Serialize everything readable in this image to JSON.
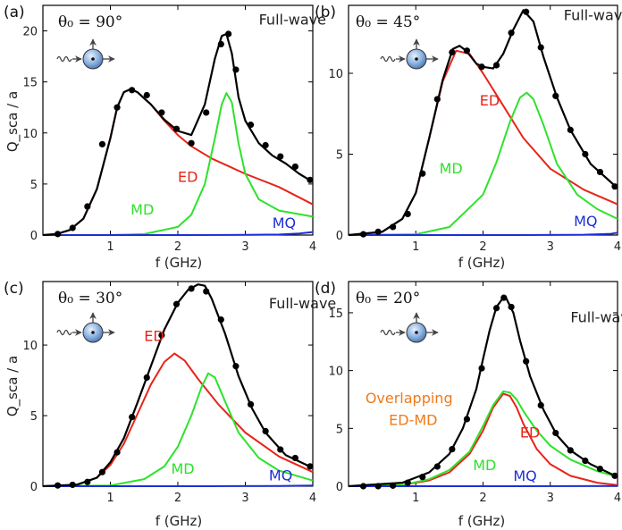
{
  "figure": {
    "y_axis_label": "Q_sca / a",
    "x_axis_label": "f (GHz)",
    "colors": {
      "ED": "#e8241a",
      "MD": "#2ee22b",
      "MQ": "#1d2fd6",
      "Full-wave": "#000000",
      "Overlap": "#f07a1a",
      "sphere": "#7fa8d8"
    }
  },
  "chart_data": [
    {
      "type": "line",
      "panel_label": "(a)",
      "theta_label": "θ₀ = 90°",
      "xlabel": "f (GHz)",
      "ylabel": "Q_sca / a",
      "xlim": [
        0,
        4
      ],
      "ylim": [
        0,
        22.5
      ],
      "xticks": [
        1,
        2,
        3,
        4
      ],
      "yticks": [
        0,
        5,
        10,
        15,
        20
      ],
      "series": [
        {
          "name": "ED",
          "x": [
            0,
            0.2,
            0.4,
            0.6,
            0.8,
            1.0,
            1.1,
            1.2,
            1.3,
            1.4,
            1.6,
            1.8,
            2.0,
            2.2,
            2.5,
            3.0,
            3.5,
            4.0
          ],
          "values": [
            0,
            0.1,
            0.5,
            1.6,
            4.5,
            9.5,
            12.5,
            14.0,
            14.3,
            14.0,
            12.8,
            11.2,
            9.8,
            8.7,
            7.5,
            6.0,
            4.7,
            3.0
          ]
        },
        {
          "name": "MD",
          "x": [
            0,
            1.0,
            1.5,
            2.0,
            2.2,
            2.4,
            2.55,
            2.65,
            2.72,
            2.8,
            2.9,
            3.0,
            3.2,
            3.5,
            4.0
          ],
          "values": [
            0,
            0,
            0.1,
            0.8,
            2.0,
            5.0,
            9.5,
            12.8,
            13.9,
            13.0,
            9.0,
            6.0,
            3.5,
            2.4,
            1.8
          ]
        },
        {
          "name": "MQ",
          "x": [
            0,
            2.0,
            3.0,
            3.5,
            3.8,
            4.0
          ],
          "values": [
            0,
            0,
            0.02,
            0.05,
            0.15,
            0.3
          ]
        },
        {
          "name": "Full-wave",
          "x": [
            0,
            0.2,
            0.4,
            0.6,
            0.8,
            1.0,
            1.1,
            1.2,
            1.3,
            1.4,
            1.6,
            1.8,
            2.0,
            2.2,
            2.4,
            2.55,
            2.65,
            2.72,
            2.8,
            2.9,
            3.0,
            3.2,
            3.4,
            3.6,
            3.8,
            4.0
          ],
          "values": [
            0,
            0.1,
            0.5,
            1.6,
            4.5,
            9.5,
            12.5,
            14.0,
            14.3,
            14.0,
            12.8,
            11.3,
            10.2,
            9.8,
            12.8,
            17.3,
            19.5,
            19.7,
            17.8,
            13.5,
            11.2,
            9.0,
            7.8,
            7.0,
            6.0,
            5.2
          ]
        }
      ],
      "markers": {
        "x": [
          0.22,
          0.44,
          0.66,
          0.88,
          1.1,
          1.32,
          1.54,
          1.76,
          1.98,
          2.2,
          2.42,
          2.64,
          2.75,
          2.86,
          3.08,
          3.3,
          3.52,
          3.74,
          3.96
        ],
        "values": [
          0.1,
          0.7,
          2.8,
          8.9,
          12.5,
          14.2,
          13.7,
          12.0,
          10.4,
          9.0,
          12.0,
          18.7,
          19.7,
          16.2,
          10.8,
          8.8,
          7.7,
          6.7,
          5.4
        ]
      },
      "annotations": [
        {
          "text": "Full-wave",
          "series": "Full-wave",
          "at": [
            3.2,
            20.6
          ]
        },
        {
          "text": "ED",
          "series": "ED",
          "at": [
            2.0,
            5.2
          ]
        },
        {
          "text": "MD",
          "series": "MD",
          "at": [
            1.3,
            2.0
          ]
        },
        {
          "text": "MQ",
          "series": "MQ",
          "at": [
            3.4,
            0.7
          ]
        }
      ]
    },
    {
      "type": "line",
      "panel_label": "(b)",
      "theta_label": "θ₀ = 45°",
      "xlabel": "f (GHz)",
      "ylabel": "",
      "xlim": [
        0,
        4
      ],
      "ylim": [
        0,
        14.2
      ],
      "xticks": [
        1,
        2,
        3,
        4
      ],
      "yticks": [
        0,
        5,
        10
      ],
      "series": [
        {
          "name": "ED",
          "x": [
            0,
            0.5,
            0.8,
            1.0,
            1.2,
            1.4,
            1.6,
            1.8,
            2.0,
            2.3,
            2.6,
            3.0,
            3.5,
            4.0
          ],
          "values": [
            0,
            0.2,
            1.0,
            2.6,
            6.0,
            9.5,
            11.4,
            11.2,
            10.0,
            8.0,
            6.0,
            4.1,
            2.8,
            1.9
          ]
        },
        {
          "name": "MD",
          "x": [
            0,
            1.0,
            1.5,
            2.0,
            2.2,
            2.4,
            2.55,
            2.65,
            2.75,
            2.9,
            3.1,
            3.4,
            3.7,
            4.0
          ],
          "values": [
            0,
            0.05,
            0.5,
            2.5,
            4.5,
            7.0,
            8.5,
            8.8,
            8.4,
            6.8,
            4.4,
            2.5,
            1.6,
            1.0
          ]
        },
        {
          "name": "MQ",
          "x": [
            0,
            2.5,
            3.5,
            3.9,
            4.0
          ],
          "values": [
            0,
            0,
            0.02,
            0.08,
            0.15
          ]
        },
        {
          "name": "Full-wave",
          "x": [
            0,
            0.5,
            0.8,
            1.0,
            1.2,
            1.4,
            1.55,
            1.65,
            1.75,
            1.9,
            2.0,
            2.15,
            2.3,
            2.45,
            2.6,
            2.75,
            2.9,
            3.1,
            3.3,
            3.6,
            4.0
          ],
          "values": [
            0,
            0.2,
            1.0,
            2.6,
            6.0,
            9.6,
            11.5,
            11.7,
            11.4,
            10.6,
            10.4,
            10.3,
            11.2,
            12.7,
            13.9,
            13.2,
            11.0,
            8.5,
            6.5,
            4.4,
            2.9
          ]
        }
      ],
      "markers": {
        "x": [
          0.22,
          0.44,
          0.66,
          0.88,
          1.1,
          1.32,
          1.54,
          1.76,
          1.98,
          2.2,
          2.42,
          2.64,
          2.86,
          3.08,
          3.3,
          3.52,
          3.74,
          3.96
        ],
        "values": [
          0.05,
          0.2,
          0.5,
          1.3,
          3.8,
          8.4,
          11.3,
          11.4,
          10.4,
          10.5,
          12.5,
          13.8,
          11.6,
          8.6,
          6.5,
          5.0,
          3.9,
          3.0
        ]
      },
      "annotations": [
        {
          "text": "Full-wave",
          "series": "Full-wave",
          "at": [
            3.2,
            13.3
          ]
        },
        {
          "text": "ED",
          "series": "ED",
          "at": [
            1.95,
            8.0
          ]
        },
        {
          "text": "MD",
          "series": "MD",
          "at": [
            1.35,
            3.8
          ]
        },
        {
          "text": "MQ",
          "series": "MQ",
          "at": [
            3.35,
            0.55
          ]
        }
      ]
    },
    {
      "type": "line",
      "panel_label": "(c)",
      "theta_label": "θ₀ = 30°",
      "xlabel": "f (GHz)",
      "ylabel": "Q_sca / a",
      "xlim": [
        0,
        4
      ],
      "ylim": [
        0,
        14.5
      ],
      "xticks": [
        1,
        2,
        3,
        4
      ],
      "yticks": [
        0,
        5,
        10
      ],
      "series": [
        {
          "name": "ED",
          "x": [
            0,
            0.5,
            0.8,
            1.0,
            1.2,
            1.4,
            1.6,
            1.8,
            1.95,
            2.1,
            2.3,
            2.6,
            3.0,
            3.5,
            4.0
          ],
          "values": [
            0,
            0.1,
            0.6,
            1.5,
            3.0,
            5.1,
            7.2,
            8.8,
            9.4,
            8.9,
            7.6,
            5.8,
            3.8,
            2.1,
            1.0
          ]
        },
        {
          "name": "MD",
          "x": [
            0,
            1.0,
            1.5,
            1.8,
            2.0,
            2.2,
            2.35,
            2.45,
            2.55,
            2.7,
            2.9,
            3.2,
            3.5,
            4.0
          ],
          "values": [
            0,
            0.05,
            0.5,
            1.4,
            2.8,
            5.0,
            7.0,
            8.0,
            7.7,
            6.0,
            3.8,
            2.0,
            1.1,
            0.4
          ]
        },
        {
          "name": "MQ",
          "x": [
            0,
            2.5,
            3.5,
            4.0
          ],
          "values": [
            0,
            0,
            0.02,
            0.05
          ]
        },
        {
          "name": "Full-wave",
          "x": [
            0,
            0.5,
            0.8,
            1.0,
            1.2,
            1.4,
            1.6,
            1.8,
            2.0,
            2.15,
            2.3,
            2.4,
            2.5,
            2.7,
            2.9,
            3.1,
            3.3,
            3.6,
            4.0
          ],
          "values": [
            0,
            0.1,
            0.6,
            1.7,
            3.4,
            5.9,
            8.5,
            11.1,
            13.0,
            13.9,
            14.3,
            14.2,
            13.3,
            10.8,
            7.8,
            5.5,
            3.8,
            2.2,
            1.3
          ]
        }
      ],
      "markers": {
        "x": [
          0.22,
          0.44,
          0.66,
          0.88,
          1.1,
          1.32,
          1.54,
          1.76,
          1.98,
          2.2,
          2.42,
          2.64,
          2.86,
          3.08,
          3.3,
          3.52,
          3.74,
          3.96
        ],
        "values": [
          0.05,
          0.1,
          0.3,
          1.0,
          2.4,
          4.9,
          7.7,
          10.7,
          12.9,
          14.0,
          13.8,
          11.8,
          8.5,
          5.8,
          3.9,
          2.6,
          2.0,
          1.4
        ]
      },
      "annotations": [
        {
          "text": "Full-wave",
          "series": "Full-wave",
          "at": [
            3.35,
            12.6
          ]
        },
        {
          "text": "ED",
          "series": "ED",
          "at": [
            1.5,
            10.3
          ]
        },
        {
          "text": "MD",
          "series": "MD",
          "at": [
            1.9,
            0.9
          ]
        },
        {
          "text": "MQ",
          "series": "MQ",
          "at": [
            3.35,
            0.4
          ]
        }
      ]
    },
    {
      "type": "line",
      "panel_label": "(d)",
      "theta_label": "θ₀ = 20°",
      "xlabel": "f (GHz)",
      "ylabel": "",
      "xlim": [
        0,
        4
      ],
      "ylim": [
        0,
        17.7
      ],
      "xticks": [
        1,
        2,
        3,
        4
      ],
      "yticks": [
        0,
        5,
        10,
        15
      ],
      "series": [
        {
          "name": "ED",
          "x": [
            0,
            0.8,
            1.2,
            1.5,
            1.8,
            2.0,
            2.15,
            2.3,
            2.4,
            2.5,
            2.6,
            2.8,
            3.0,
            3.3,
            3.7,
            4.0
          ],
          "values": [
            0,
            0.1,
            0.5,
            1.2,
            2.8,
            4.8,
            6.8,
            8.0,
            7.8,
            6.8,
            5.4,
            3.2,
            1.9,
            0.9,
            0.3,
            0.1
          ]
        },
        {
          "name": "MD",
          "x": [
            0,
            0.8,
            1.2,
            1.5,
            1.8,
            2.0,
            2.15,
            2.3,
            2.4,
            2.5,
            2.6,
            2.8,
            3.0,
            3.3,
            3.7,
            4.0
          ],
          "values": [
            0,
            0.1,
            0.6,
            1.4,
            3.0,
            5.2,
            7.0,
            8.2,
            8.1,
            7.5,
            6.5,
            4.8,
            3.5,
            2.3,
            1.3,
            0.8
          ]
        },
        {
          "name": "MQ",
          "x": [
            0,
            2.5,
            4.0
          ],
          "values": [
            0,
            0,
            0.02
          ]
        },
        {
          "name": "Full-wave",
          "x": [
            0,
            0.8,
            1.2,
            1.5,
            1.7,
            1.9,
            2.0,
            2.1,
            2.2,
            2.3,
            2.35,
            2.45,
            2.55,
            2.7,
            2.9,
            3.1,
            3.3,
            3.6,
            4.0
          ],
          "values": [
            0,
            0.3,
            1.2,
            2.8,
            5.0,
            8.4,
            11.0,
            13.5,
            15.5,
            16.3,
            16.2,
            15.0,
            12.6,
            9.5,
            6.6,
            4.4,
            3.1,
            1.9,
            0.8
          ]
        }
      ],
      "markers": {
        "x": [
          0.22,
          0.44,
          0.66,
          0.88,
          1.1,
          1.32,
          1.54,
          1.76,
          1.98,
          2.2,
          2.31,
          2.42,
          2.64,
          2.86,
          3.08,
          3.3,
          3.52,
          3.74,
          3.96
        ],
        "values": [
          0,
          0,
          0.05,
          0.3,
          0.8,
          1.7,
          3.2,
          5.8,
          10.2,
          15.4,
          16.3,
          15.5,
          10.8,
          7.0,
          4.6,
          3.1,
          2.2,
          1.5,
          0.9
        ]
      },
      "annotations": [
        {
          "text": "Full-wave",
          "series": "Full-wave",
          "at": [
            3.3,
            14.2
          ]
        },
        {
          "text": "Overlapping",
          "series": "Overlap",
          "at": [
            0.25,
            7.2
          ]
        },
        {
          "text": "ED-MD",
          "series": "Overlap",
          "at": [
            0.6,
            5.3
          ]
        },
        {
          "text": "ED",
          "series": "ED",
          "at": [
            2.55,
            4.2
          ]
        },
        {
          "text": "MD",
          "series": "MD",
          "at": [
            1.85,
            1.4
          ]
        },
        {
          "text": "MQ",
          "series": "MQ",
          "at": [
            2.45,
            0.45
          ]
        }
      ]
    }
  ]
}
